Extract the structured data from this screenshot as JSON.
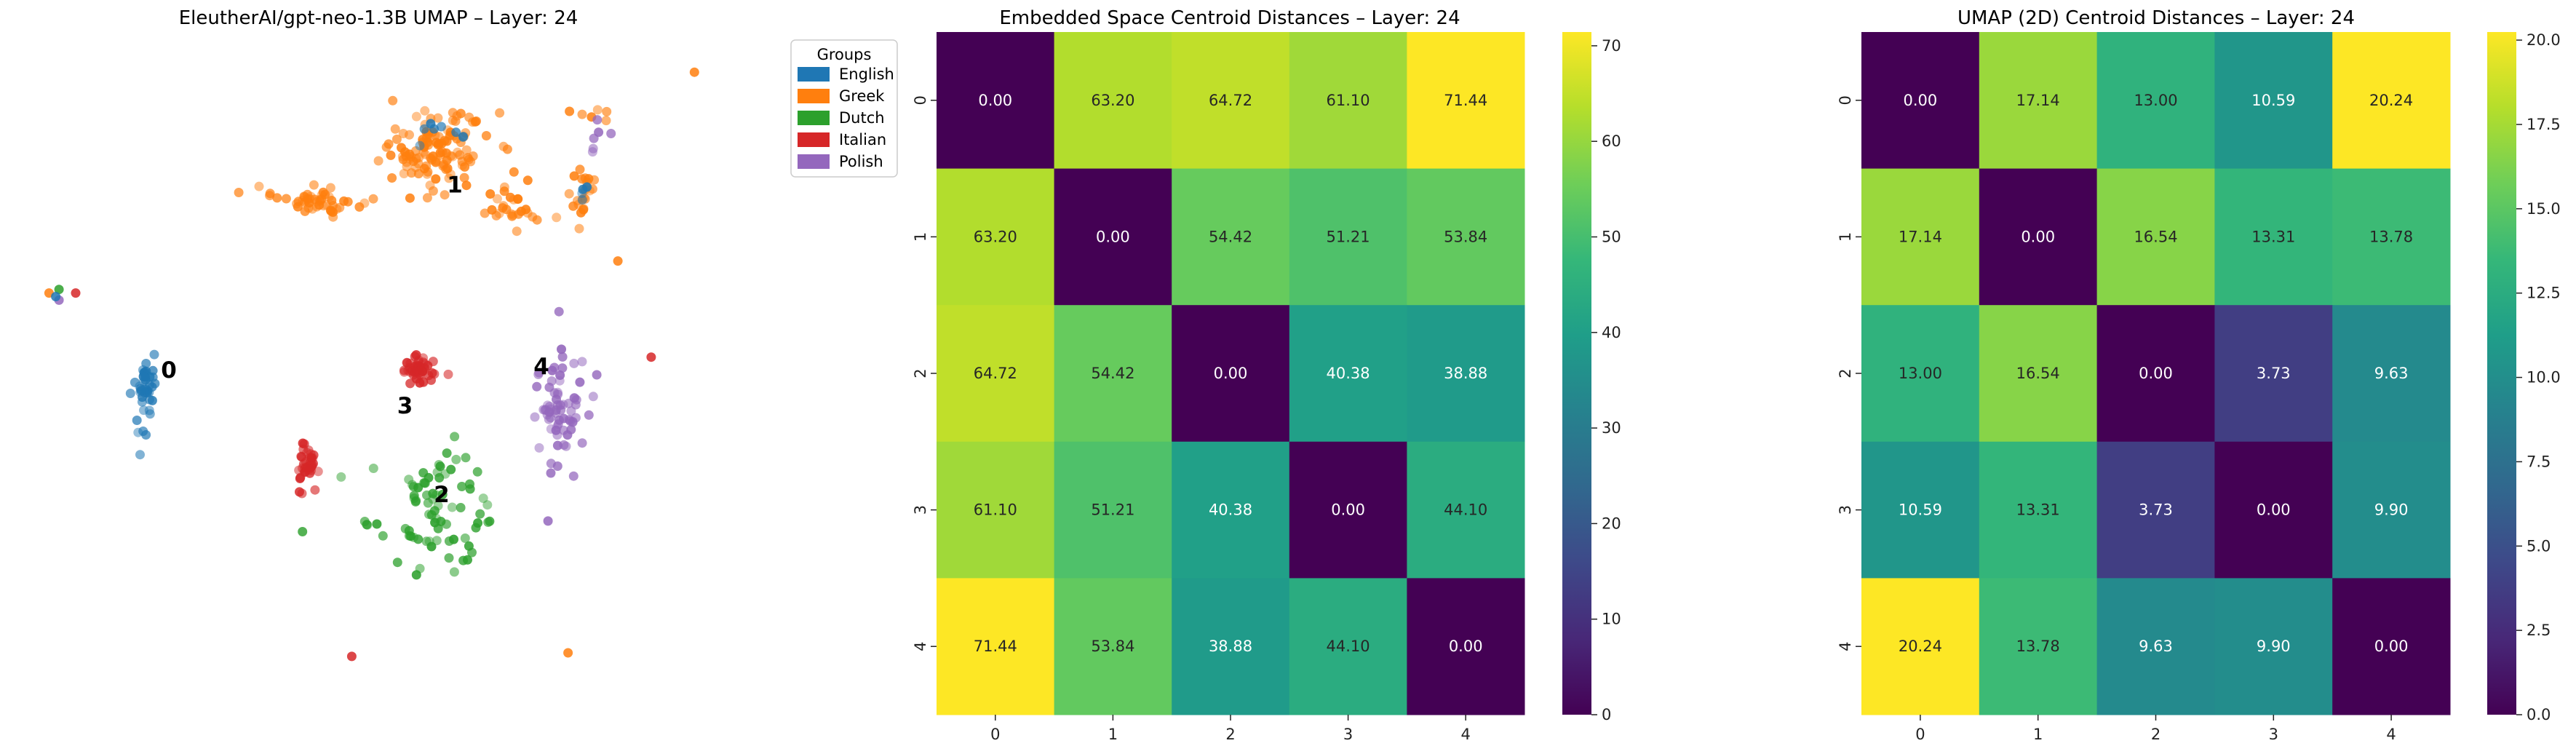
{
  "chart_data": [
    {
      "type": "scatter",
      "title": "EleutherAI/gpt-neo-1.3B UMAP – Layer: 24",
      "legend": {
        "title": "Groups",
        "placement": "outside-right",
        "entries": [
          {
            "name": "English",
            "color": "#1f77b4"
          },
          {
            "name": "Greek",
            "color": "#ff7f0e"
          },
          {
            "name": "Dutch",
            "color": "#2ca02c"
          },
          {
            "name": "Italian",
            "color": "#d62728"
          },
          {
            "name": "Polish",
            "color": "#9467bd"
          }
        ]
      },
      "axes_visible": false,
      "xlim": [
        -11,
        10
      ],
      "ylim": [
        -9,
        10
      ],
      "centroid_labels": [
        {
          "text": "0",
          "x": -6.8,
          "y": 0.8
        },
        {
          "text": "1",
          "x": 1.8,
          "y": 6.0
        },
        {
          "text": "2",
          "x": 1.4,
          "y": -2.7
        },
        {
          "text": "3",
          "x": 0.3,
          "y": -0.2
        },
        {
          "text": "4",
          "x": 4.4,
          "y": 0.9
        }
      ],
      "clusters": [
        {
          "group": "Greek",
          "cx": 1.2,
          "cy": 7.0,
          "sx": 1.5,
          "sy": 1.0,
          "n": 120
        },
        {
          "group": "Greek",
          "cx": -2.4,
          "cy": 5.6,
          "sx": 1.2,
          "sy": 0.35,
          "n": 50
        },
        {
          "group": "Greek",
          "cx": 3.6,
          "cy": 5.4,
          "sx": 0.7,
          "sy": 0.5,
          "n": 25
        },
        {
          "group": "Greek",
          "cx": 5.6,
          "cy": 5.8,
          "sx": 0.4,
          "sy": 0.8,
          "n": 22
        },
        {
          "group": "Greek",
          "cx": 6.0,
          "cy": 8.0,
          "sx": 0.7,
          "sy": 0.4,
          "n": 6
        },
        {
          "group": "English",
          "cx": -7.6,
          "cy": 0.2,
          "sx": 0.3,
          "sy": 1.2,
          "n": 40
        },
        {
          "group": "Italian",
          "cx": 0.7,
          "cy": 0.8,
          "sx": 0.5,
          "sy": 0.4,
          "n": 45
        },
        {
          "group": "Italian",
          "cx": -2.7,
          "cy": -1.8,
          "sx": 0.3,
          "sy": 0.5,
          "n": 40
        },
        {
          "group": "Dutch",
          "cx": 1.2,
          "cy": -3.0,
          "sx": 1.8,
          "sy": 1.5,
          "n": 80
        },
        {
          "group": "Polish",
          "cx": 4.8,
          "cy": -0.3,
          "sx": 0.9,
          "sy": 1.6,
          "n": 70
        },
        {
          "group": "Polish",
          "cx": 6.2,
          "cy": 7.3,
          "sx": 0.4,
          "sy": 0.6,
          "n": 6
        },
        {
          "group": "English",
          "cx": 1.5,
          "cy": 7.4,
          "sx": 0.8,
          "sy": 0.5,
          "n": 8
        },
        {
          "group": "English",
          "cx": 5.6,
          "cy": 5.8,
          "sx": 0.3,
          "sy": 0.4,
          "n": 4
        }
      ],
      "points": [
        {
          "group": "Greek",
          "x": -10.4,
          "y": 3.0
        },
        {
          "group": "Dutch",
          "x": -10.1,
          "y": 3.1
        },
        {
          "group": "Italian",
          "x": -9.6,
          "y": 3.0
        },
        {
          "group": "Polish",
          "x": -10.1,
          "y": 2.8
        },
        {
          "group": "English",
          "x": -10.2,
          "y": 2.9
        },
        {
          "group": "Greek",
          "x": 9.0,
          "y": 9.2
        },
        {
          "group": "Greek",
          "x": 6.7,
          "y": 3.9
        },
        {
          "group": "Italian",
          "x": 7.7,
          "y": 1.2
        },
        {
          "group": "Polish",
          "x": 4.6,
          "y": -3.4
        },
        {
          "group": "Italian",
          "x": -1.3,
          "y": -7.2
        },
        {
          "group": "Greek",
          "x": 5.2,
          "y": -7.1
        }
      ]
    },
    {
      "type": "heatmap",
      "title": "Embedded Space Centroid Distances – Layer: 24",
      "x_ticks": [
        "0",
        "1",
        "2",
        "3",
        "4"
      ],
      "y_ticks": [
        "0",
        "1",
        "2",
        "3",
        "4"
      ],
      "colormap": "viridis",
      "vmin": 0,
      "vmax": 71.44,
      "colorbar_ticks": [
        0,
        10,
        20,
        30,
        40,
        50,
        60,
        70
      ],
      "colorbar_tick_labels": [
        "0",
        "10",
        "20",
        "30",
        "40",
        "50",
        "60",
        "70"
      ],
      "cell_labels": [
        [
          "0.00",
          "63.20",
          "64.72",
          "61.10",
          "71.44"
        ],
        [
          "63.20",
          "0.00",
          "54.42",
          "51.21",
          "53.84"
        ],
        [
          "64.72",
          "54.42",
          "0.00",
          "40.38",
          "38.88"
        ],
        [
          "61.10",
          "51.21",
          "40.38",
          "0.00",
          "44.10"
        ],
        [
          "71.44",
          "53.84",
          "38.88",
          "44.10",
          "0.00"
        ]
      ],
      "values": [
        [
          0.0,
          63.2,
          64.72,
          61.1,
          71.44
        ],
        [
          63.2,
          0.0,
          54.42,
          51.21,
          53.84
        ],
        [
          64.72,
          54.42,
          0.0,
          40.38,
          38.88
        ],
        [
          61.1,
          51.21,
          40.38,
          0.0,
          44.1
        ],
        [
          71.44,
          53.84,
          38.88,
          44.1,
          0.0
        ]
      ]
    },
    {
      "type": "heatmap",
      "title": "UMAP (2D) Centroid Distances – Layer: 24",
      "x_ticks": [
        "0",
        "1",
        "2",
        "3",
        "4"
      ],
      "y_ticks": [
        "0",
        "1",
        "2",
        "3",
        "4"
      ],
      "colormap": "viridis",
      "vmin": 0,
      "vmax": 20.24,
      "colorbar_ticks": [
        0,
        2.5,
        5,
        7.5,
        10,
        12.5,
        15,
        17.5,
        20
      ],
      "colorbar_tick_labels": [
        "0.0",
        "2.5",
        "5.0",
        "7.5",
        "10.0",
        "12.5",
        "15.0",
        "17.5",
        "20.0"
      ],
      "cell_labels": [
        [
          "0.00",
          "17.14",
          "13.00",
          "10.59",
          "20.24"
        ],
        [
          "17.14",
          "0.00",
          "16.54",
          "13.31",
          "13.78"
        ],
        [
          "13.00",
          "16.54",
          "0.00",
          "3.73",
          "9.63"
        ],
        [
          "10.59",
          "13.31",
          "3.73",
          "0.00",
          "9.90"
        ],
        [
          "20.24",
          "13.78",
          "9.63",
          "9.90",
          "0.00"
        ]
      ],
      "values": [
        [
          0.0,
          17.14,
          13.0,
          10.59,
          20.24
        ],
        [
          17.14,
          0.0,
          16.54,
          13.31,
          13.78
        ],
        [
          13.0,
          16.54,
          0.0,
          3.73,
          9.63
        ],
        [
          10.59,
          13.31,
          3.73,
          0.0,
          9.9
        ],
        [
          20.24,
          13.78,
          9.63,
          9.9,
          0.0
        ]
      ]
    }
  ]
}
